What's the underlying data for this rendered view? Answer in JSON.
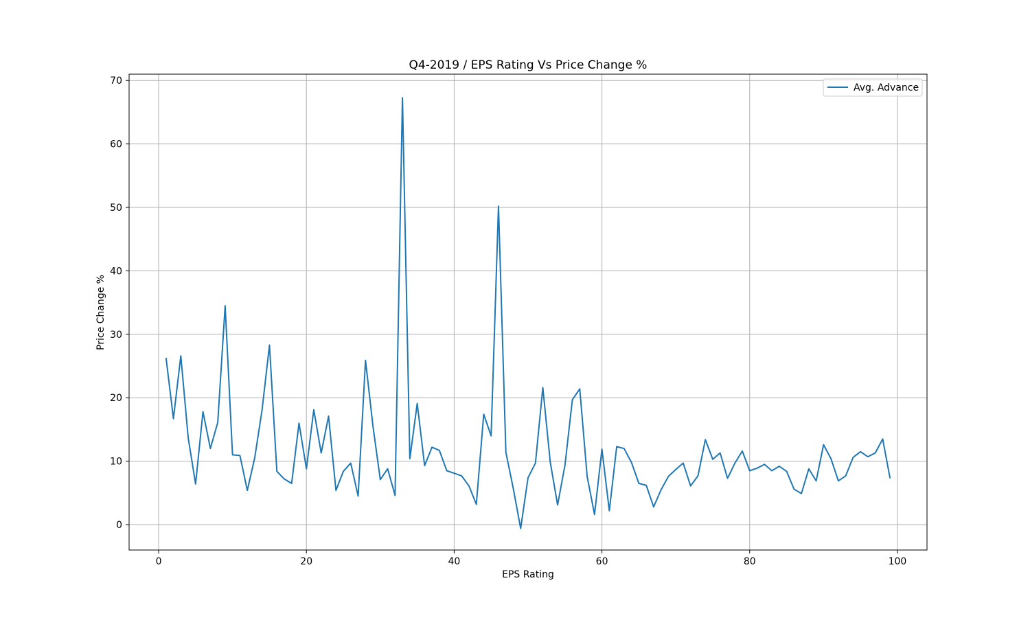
{
  "chart_data": {
    "type": "line",
    "title": "Q4-2019 / EPS Rating Vs Price Change %",
    "xlabel": "EPS Rating",
    "ylabel": "Price Change %",
    "xlim": [
      -4,
      104
    ],
    "ylim": [
      -4,
      71
    ],
    "xticks": [
      0,
      20,
      40,
      60,
      80,
      100
    ],
    "yticks": [
      0,
      10,
      20,
      30,
      40,
      50,
      60,
      70
    ],
    "grid": true,
    "legend_position": "top-right",
    "line_color": "#1f77b4",
    "series": [
      {
        "name": "Avg. Advance",
        "x": [
          1,
          2,
          3,
          4,
          5,
          6,
          7,
          8,
          9,
          10,
          11,
          12,
          13,
          14,
          15,
          16,
          17,
          18,
          19,
          20,
          21,
          22,
          23,
          24,
          25,
          26,
          27,
          28,
          29,
          30,
          31,
          32,
          33,
          34,
          35,
          36,
          37,
          38,
          39,
          40,
          41,
          42,
          43,
          44,
          45,
          46,
          47,
          48,
          49,
          50,
          51,
          52,
          53,
          54,
          55,
          56,
          57,
          58,
          59,
          60,
          61,
          62,
          63,
          64,
          65,
          66,
          67,
          68,
          69,
          70,
          71,
          72,
          73,
          74,
          75,
          76,
          77,
          78,
          79,
          80,
          81,
          82,
          83,
          84,
          85,
          86,
          87,
          88,
          89,
          90,
          91,
          92,
          93,
          94,
          95,
          96,
          97,
          98,
          99
        ],
        "values": [
          26.3,
          16.7,
          26.6,
          13.7,
          6.4,
          17.8,
          12.0,
          16.1,
          34.5,
          11.0,
          10.9,
          5.4,
          10.5,
          18.1,
          28.3,
          8.4,
          7.2,
          6.5,
          16.0,
          8.8,
          18.1,
          11.3,
          17.1,
          5.4,
          8.4,
          9.7,
          4.5,
          25.9,
          15.6,
          7.1,
          8.8,
          4.6,
          67.3,
          10.4,
          19.1,
          9.3,
          12.2,
          11.7,
          8.5,
          8.1,
          7.7,
          6.1,
          3.2,
          17.4,
          14.0,
          50.2,
          11.4,
          5.7,
          -0.6,
          7.4,
          9.7,
          21.6,
          9.9,
          3.1,
          9.4,
          19.7,
          21.4,
          7.6,
          1.6,
          11.9,
          2.2,
          12.3,
          12.0,
          9.8,
          6.5,
          6.2,
          2.8,
          5.5,
          7.6,
          8.7,
          9.7,
          6.1,
          7.7,
          13.4,
          10.3,
          11.3,
          7.3,
          9.7,
          11.6,
          8.5,
          8.9,
          9.5,
          8.5,
          9.2,
          8.4,
          5.6,
          4.9,
          8.8,
          6.9,
          12.6,
          10.4,
          6.9,
          7.7,
          10.6,
          11.5,
          10.7,
          11.3,
          13.5,
          7.3
        ]
      }
    ]
  }
}
